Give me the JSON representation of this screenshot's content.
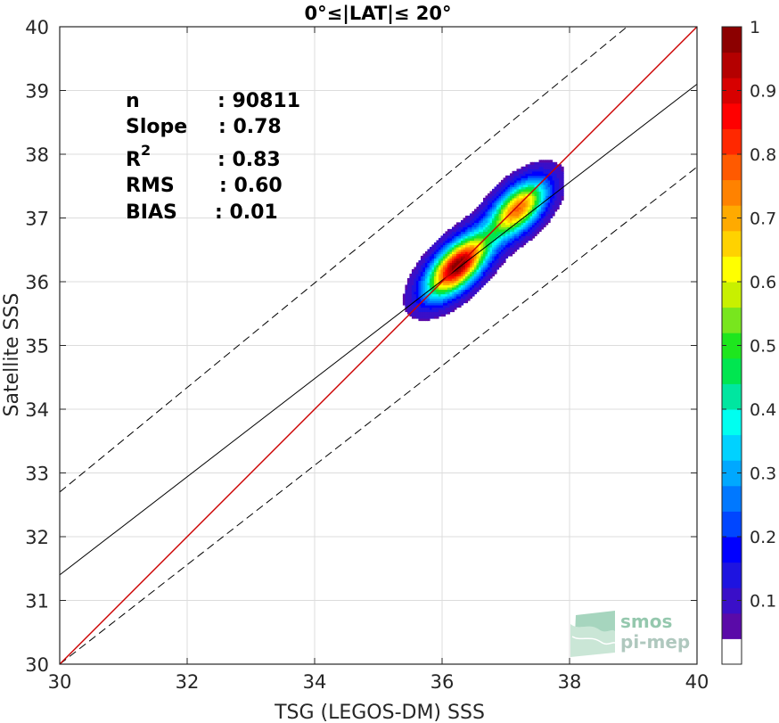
{
  "chart_data": {
    "type": "scatter",
    "subtype": "density-contour",
    "title": "0°≤|LAT|≤ 20°",
    "xlabel": "TSG (LEGOS-DM) SSS",
    "ylabel": "Satellite SSS",
    "xlim": [
      30,
      40
    ],
    "ylim": [
      30,
      40
    ],
    "xticks": [
      30,
      32,
      34,
      36,
      38,
      40
    ],
    "yticks": [
      30,
      31,
      32,
      33,
      34,
      35,
      36,
      37,
      38,
      39,
      40
    ],
    "grid": true,
    "stats": [
      {
        "label": "n",
        "value": ": 90811"
      },
      {
        "label": "Slope",
        "value": ": 0.78"
      },
      {
        "label": "R",
        "sup": "2",
        "value": ": 0.83"
      },
      {
        "label": "RMS",
        "value": ": 0.60"
      },
      {
        "label": "BIAS",
        "value": ": 0.01"
      }
    ],
    "lines": {
      "identity": {
        "slope": 1,
        "intercept": 0,
        "color": "#cc0000"
      },
      "regression": {
        "slope": 0.78,
        "x_at_30": 31.4,
        "x_at_40": 39.1,
        "color": "#000000"
      },
      "upper_bound": {
        "y_at_30": 32.7,
        "y_at_40": 40.9,
        "style": "dashed"
      },
      "lower_bound": {
        "y_at_30": 30.0,
        "y_at_40": 37.8,
        "style": "dashed"
      }
    },
    "density_peaks": [
      {
        "x": 36.25,
        "y": 36.25,
        "level": 1.0
      },
      {
        "x": 37.2,
        "y": 37.15,
        "level": 0.75
      }
    ],
    "colorbar": {
      "range": [
        0,
        1
      ],
      "ticks": [
        0.1,
        0.2,
        0.3,
        0.4,
        0.5,
        0.6,
        0.7,
        0.8,
        0.9,
        1
      ],
      "colors": [
        "#ffffff",
        "#5a0aa8",
        "#3a0fc8",
        "#1e14e0",
        "#0000ff",
        "#0046ff",
        "#0078ff",
        "#00a8ff",
        "#00d2ff",
        "#00fff0",
        "#00e6a0",
        "#00e650",
        "#1ee61e",
        "#78e61e",
        "#c8f000",
        "#ffff00",
        "#ffd200",
        "#ffaa00",
        "#ff8200",
        "#ff5a00",
        "#ff2800",
        "#ff0000",
        "#d70000",
        "#b40000",
        "#8c0000"
      ]
    }
  },
  "watermark": {
    "line1": "smos",
    "line2": "pi-mep"
  }
}
